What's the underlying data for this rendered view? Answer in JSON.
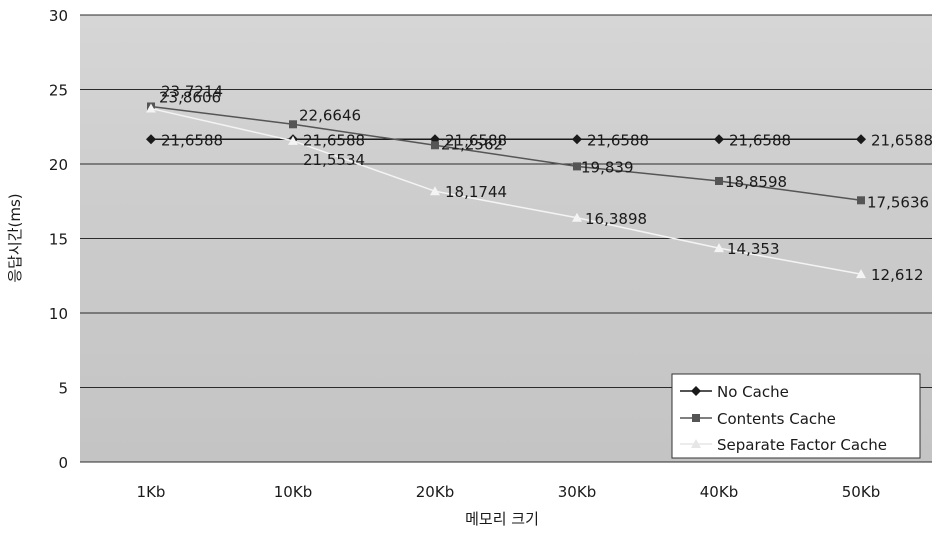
{
  "chart_data": {
    "type": "line",
    "title": "",
    "xlabel": "메모리 크기",
    "ylabel": "응답시간(ms)",
    "categories": [
      "1Kb",
      "10Kb",
      "20Kb",
      "30Kb",
      "40Kb",
      "50Kb"
    ],
    "ylim": [
      0,
      30
    ],
    "yticks": [
      0,
      5,
      10,
      15,
      20,
      25,
      30
    ],
    "grid": true,
    "legend": "bottom-right",
    "series": [
      {
        "name": "No Cache",
        "marker": "diamond",
        "color": "#1a1a1a",
        "values": [
          21.6588,
          21.6588,
          21.6588,
          21.6588,
          21.6588,
          21.6588
        ],
        "labels": [
          "21,6588",
          "21,6588",
          "21,6588",
          "21,6588",
          "21,6588",
          "21,6588"
        ]
      },
      {
        "name": "Contents Cache",
        "marker": "square",
        "color": "#555555",
        "values": [
          23.8606,
          22.6646,
          21.2562,
          19.839,
          18.8598,
          17.5636
        ],
        "labels": [
          "23,8606",
          "22,6646",
          "21,2562",
          "19,839",
          "18,8598",
          "17,5636"
        ]
      },
      {
        "name": "Separate Factor Cache",
        "marker": "triangle",
        "color": "#ffffff",
        "values": [
          23.7214,
          21.5534,
          18.1744,
          16.3898,
          14.353,
          12.612
        ],
        "labels": [
          "23,7214",
          "21,5534",
          "18,1744",
          "16,3898",
          "14,353",
          "12,612"
        ]
      }
    ]
  }
}
